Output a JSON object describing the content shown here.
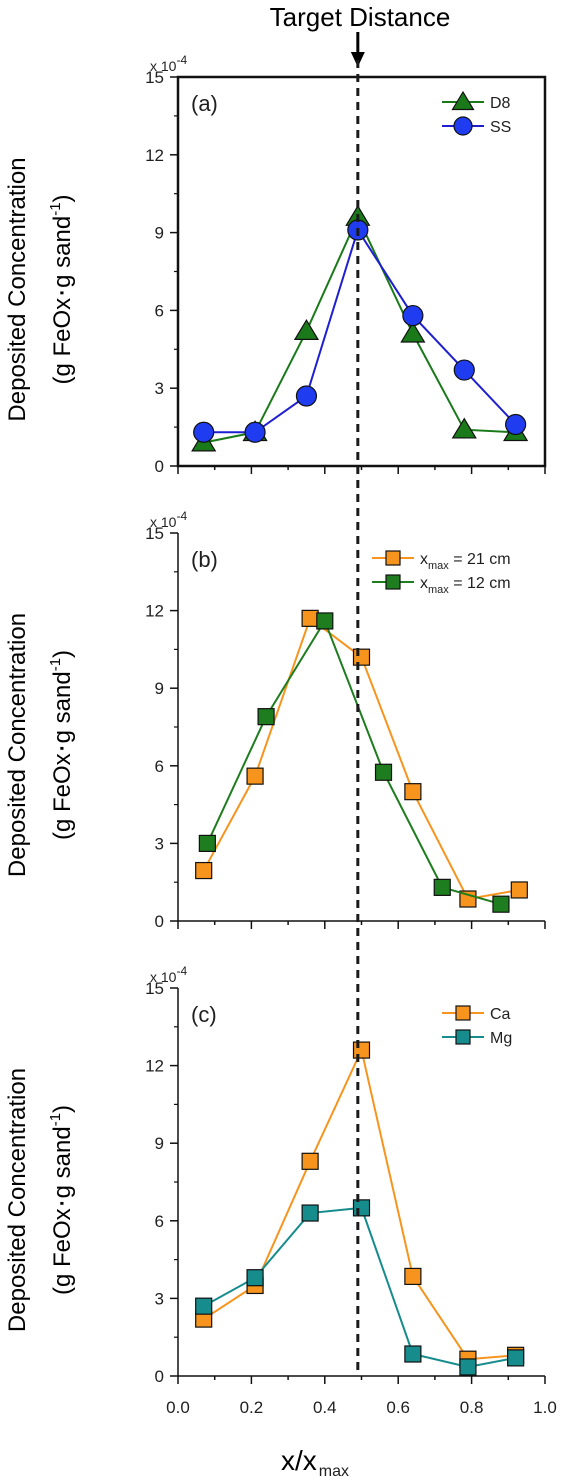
{
  "annotation": {
    "target_label": "Target Distance",
    "target_x": 0.49
  },
  "xlabel": {
    "main": "x/x",
    "sub": "max"
  },
  "x_ticks": [
    "0.0",
    "0.2",
    "0.4",
    "0.6",
    "0.8",
    "1.0"
  ],
  "chart_data": [
    {
      "type": "line",
      "panel": "(a)",
      "ylabel": [
        "Deposited Concentration",
        "(g FeOx",
        "g sand",
        "-1",
        ")"
      ],
      "y_multiplier": "x 10",
      "y_exponent": "-4",
      "xlim": [
        0,
        1
      ],
      "ylim": [
        0,
        15
      ],
      "y_ticks": [
        "0",
        "3",
        "6",
        "9",
        "12",
        "15"
      ],
      "x_ticks_shown": false,
      "legend_position": "top-right",
      "series": [
        {
          "name": "D8",
          "marker": "triangle",
          "color": "#1a7a1a",
          "line_color": "#1a7a1a",
          "x": [
            0.07,
            0.21,
            0.35,
            0.49,
            0.64,
            0.78,
            0.92
          ],
          "y": [
            0.9,
            1.3,
            5.2,
            9.6,
            5.1,
            1.4,
            1.3
          ]
        },
        {
          "name": "SS",
          "marker": "circle",
          "color": "#1f3cf0",
          "line_color": "#1f1fd0",
          "x": [
            0.07,
            0.21,
            0.35,
            0.49,
            0.64,
            0.78,
            0.92
          ],
          "y": [
            1.3,
            1.3,
            2.7,
            9.1,
            5.8,
            3.7,
            1.6
          ]
        }
      ]
    },
    {
      "type": "line",
      "panel": "(b)",
      "ylabel": [
        "Deposited Concentration",
        "(g FeOx",
        "g sand",
        "-1",
        ")"
      ],
      "y_multiplier": "x 10",
      "y_exponent": "-4",
      "xlim": [
        0,
        1
      ],
      "ylim": [
        0,
        15
      ],
      "y_ticks": [
        "0",
        "3",
        "6",
        "9",
        "12",
        "15"
      ],
      "x_ticks_shown": false,
      "legend_position": "top-right",
      "series": [
        {
          "name_main": "x",
          "name_sub": "max",
          "name_rest": " = 21 cm",
          "marker": "square",
          "color": "#f7941d",
          "line_color": "#f7941d",
          "x": [
            0.07,
            0.21,
            0.36,
            0.5,
            0.64,
            0.79,
            0.93
          ],
          "y": [
            1.95,
            5.6,
            11.7,
            10.2,
            5.0,
            0.85,
            1.2
          ]
        },
        {
          "name_main": "x",
          "name_sub": "max",
          "name_rest": " = 12 cm",
          "marker": "square",
          "color": "#1e7d1e",
          "line_color": "#1e7d1e",
          "x": [
            0.08,
            0.24,
            0.4,
            0.56,
            0.72,
            0.88
          ],
          "y": [
            3.0,
            7.9,
            11.6,
            5.75,
            1.3,
            0.65
          ]
        }
      ]
    },
    {
      "type": "line",
      "panel": "(c)",
      "ylabel": [
        "Deposited Concentration",
        "(g FeOx",
        "g sand",
        "-1",
        ")"
      ],
      "y_multiplier": "x 10",
      "y_exponent": "-4",
      "xlim": [
        0,
        1
      ],
      "ylim": [
        0,
        15
      ],
      "y_ticks": [
        "0",
        "3",
        "6",
        "9",
        "12",
        "15"
      ],
      "x_ticks_shown": true,
      "legend_position": "top-right",
      "series": [
        {
          "name": "Ca",
          "marker": "square",
          "color": "#f7941d",
          "line_color": "#f7941d",
          "x": [
            0.07,
            0.21,
            0.36,
            0.5,
            0.64,
            0.79,
            0.92
          ],
          "y": [
            2.2,
            3.5,
            8.3,
            12.6,
            3.85,
            0.65,
            0.8
          ]
        },
        {
          "name": "Mg",
          "marker": "square",
          "color": "#168c8c",
          "line_color": "#168c8c",
          "x": [
            0.07,
            0.21,
            0.36,
            0.5,
            0.64,
            0.79,
            0.92
          ],
          "y": [
            2.7,
            3.8,
            6.3,
            6.5,
            0.85,
            0.35,
            0.7
          ]
        }
      ]
    }
  ]
}
